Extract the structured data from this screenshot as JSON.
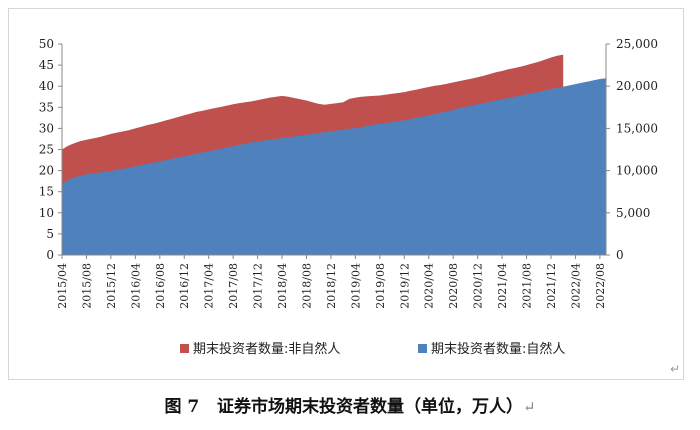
{
  "figure": {
    "caption_number": "图 7",
    "caption_text": "证券市场期末投资者数量（单位，万人）",
    "return_mark": "↵"
  },
  "chart_data": {
    "type": "area",
    "stacked": false,
    "x_tick_labels": [
      "2015/04",
      "2015/08",
      "2015/12",
      "2016/04",
      "2016/08",
      "2016/12",
      "2017/04",
      "2017/08",
      "2017/12",
      "2018/04",
      "2018/08",
      "2018/12",
      "2019/04",
      "2019/08",
      "2019/12",
      "2020/04",
      "2020/08",
      "2020/12",
      "2021/04",
      "2021/08",
      "2021/12",
      "2022/04",
      "2022/08"
    ],
    "y_left": {
      "min": 0,
      "max": 50,
      "step": 5,
      "ticks": [
        "0",
        "5",
        "10",
        "15",
        "20",
        "25",
        "30",
        "35",
        "40",
        "45",
        "50"
      ]
    },
    "y_right": {
      "min": 0,
      "max": 25000,
      "step": 5000,
      "ticks": [
        "0",
        "5,000",
        "10,000",
        "15,000",
        "20,000",
        "25,000"
      ]
    },
    "legend_position": "bottom",
    "grid": false,
    "series": [
      {
        "name": "期末投资者数量:非自然人",
        "axis": "left",
        "color": "#c0504d",
        "x": [
          "2015/04",
          "2015/05",
          "2015/06",
          "2015/07",
          "2015/08",
          "2015/09",
          "2015/10",
          "2015/11",
          "2015/12",
          "2016/01",
          "2016/02",
          "2016/03",
          "2016/04",
          "2016/05",
          "2016/06",
          "2016/07",
          "2016/08",
          "2016/09",
          "2016/10",
          "2016/11",
          "2016/12",
          "2017/01",
          "2017/02",
          "2017/03",
          "2017/04",
          "2017/05",
          "2017/06",
          "2017/07",
          "2017/08",
          "2017/09",
          "2017/10",
          "2017/11",
          "2017/12",
          "2018/01",
          "2018/02",
          "2018/03",
          "2018/04",
          "2018/05",
          "2018/06",
          "2018/07",
          "2018/08",
          "2018/09",
          "2018/10",
          "2018/11",
          "2018/12",
          "2019/01",
          "2019/02",
          "2019/03",
          "2019/04",
          "2019/05",
          "2019/06",
          "2019/07",
          "2019/08",
          "2019/09",
          "2019/10",
          "2019/11",
          "2019/12",
          "2020/01",
          "2020/02",
          "2020/03",
          "2020/04",
          "2020/05",
          "2020/06",
          "2020/07",
          "2020/08",
          "2020/09",
          "2020/10",
          "2020/11",
          "2020/12",
          "2021/01",
          "2021/02",
          "2021/03",
          "2021/04",
          "2021/05",
          "2021/06",
          "2021/07",
          "2021/08",
          "2021/09",
          "2021/10",
          "2021/11",
          "2021/12",
          "2022/01",
          "2022/02"
        ],
        "values": [
          25.0,
          25.9,
          26.5,
          27.0,
          27.3,
          27.6,
          27.9,
          28.3,
          28.7,
          29.0,
          29.3,
          29.6,
          30.0,
          30.4,
          30.8,
          31.1,
          31.5,
          31.9,
          32.3,
          32.7,
          33.1,
          33.5,
          33.9,
          34.2,
          34.5,
          34.8,
          35.1,
          35.4,
          35.7,
          36.0,
          36.2,
          36.4,
          36.7,
          37.0,
          37.3,
          37.5,
          37.7,
          37.5,
          37.2,
          36.9,
          36.6,
          36.2,
          35.8,
          35.6,
          35.8,
          36.0,
          36.2,
          37.0,
          37.3,
          37.5,
          37.6,
          37.7,
          37.8,
          38.0,
          38.2,
          38.4,
          38.6,
          38.9,
          39.2,
          39.5,
          39.8,
          40.1,
          40.3,
          40.6,
          40.9,
          41.2,
          41.5,
          41.8,
          42.1,
          42.5,
          42.9,
          43.3,
          43.6,
          44.0,
          44.3,
          44.6,
          45.0,
          45.4,
          45.8,
          46.3,
          46.8,
          47.2,
          47.5
        ]
      },
      {
        "name": "期末投资者数量:自然人",
        "axis": "right",
        "color": "#4f81bd",
        "x": [
          "2015/04",
          "2015/05",
          "2015/06",
          "2015/07",
          "2015/08",
          "2015/09",
          "2015/10",
          "2015/11",
          "2015/12",
          "2016/01",
          "2016/02",
          "2016/03",
          "2016/04",
          "2016/05",
          "2016/06",
          "2016/07",
          "2016/08",
          "2016/09",
          "2016/10",
          "2016/11",
          "2016/12",
          "2017/01",
          "2017/02",
          "2017/03",
          "2017/04",
          "2017/05",
          "2017/06",
          "2017/07",
          "2017/08",
          "2017/09",
          "2017/10",
          "2017/11",
          "2017/12",
          "2018/01",
          "2018/02",
          "2018/03",
          "2018/04",
          "2018/05",
          "2018/06",
          "2018/07",
          "2018/08",
          "2018/09",
          "2018/10",
          "2018/11",
          "2018/12",
          "2019/01",
          "2019/02",
          "2019/03",
          "2019/04",
          "2019/05",
          "2019/06",
          "2019/07",
          "2019/08",
          "2019/09",
          "2019/10",
          "2019/11",
          "2019/12",
          "2020/01",
          "2020/02",
          "2020/03",
          "2020/04",
          "2020/05",
          "2020/06",
          "2020/07",
          "2020/08",
          "2020/09",
          "2020/10",
          "2020/11",
          "2020/12",
          "2021/01",
          "2021/02",
          "2021/03",
          "2021/04",
          "2021/05",
          "2021/06",
          "2021/07",
          "2021/08",
          "2021/09",
          "2021/10",
          "2021/11",
          "2021/12",
          "2022/01",
          "2022/02",
          "2022/03",
          "2022/04",
          "2022/05",
          "2022/06",
          "2022/07",
          "2022/08",
          "2022/09"
        ],
        "values": [
          8400,
          8900,
          9200,
          9400,
          9550,
          9650,
          9750,
          9850,
          9950,
          10100,
          10200,
          10350,
          10500,
          10650,
          10800,
          10950,
          11100,
          11250,
          11400,
          11550,
          11700,
          11850,
          12000,
          12150,
          12300,
          12450,
          12600,
          12750,
          12900,
          13050,
          13200,
          13350,
          13450,
          13550,
          13650,
          13750,
          13850,
          13950,
          14050,
          14150,
          14250,
          14350,
          14450,
          14550,
          14650,
          14750,
          14850,
          14950,
          15050,
          15150,
          15300,
          15450,
          15550,
          15650,
          15750,
          15850,
          15950,
          16100,
          16250,
          16400,
          16550,
          16700,
          16850,
          17000,
          17200,
          17400,
          17550,
          17700,
          17850,
          18000,
          18150,
          18300,
          18450,
          18600,
          18750,
          18900,
          19050,
          19200,
          19350,
          19500,
          19650,
          19800,
          19950,
          20100,
          20250,
          20400,
          20550,
          20700,
          20850,
          20950
        ]
      }
    ]
  }
}
